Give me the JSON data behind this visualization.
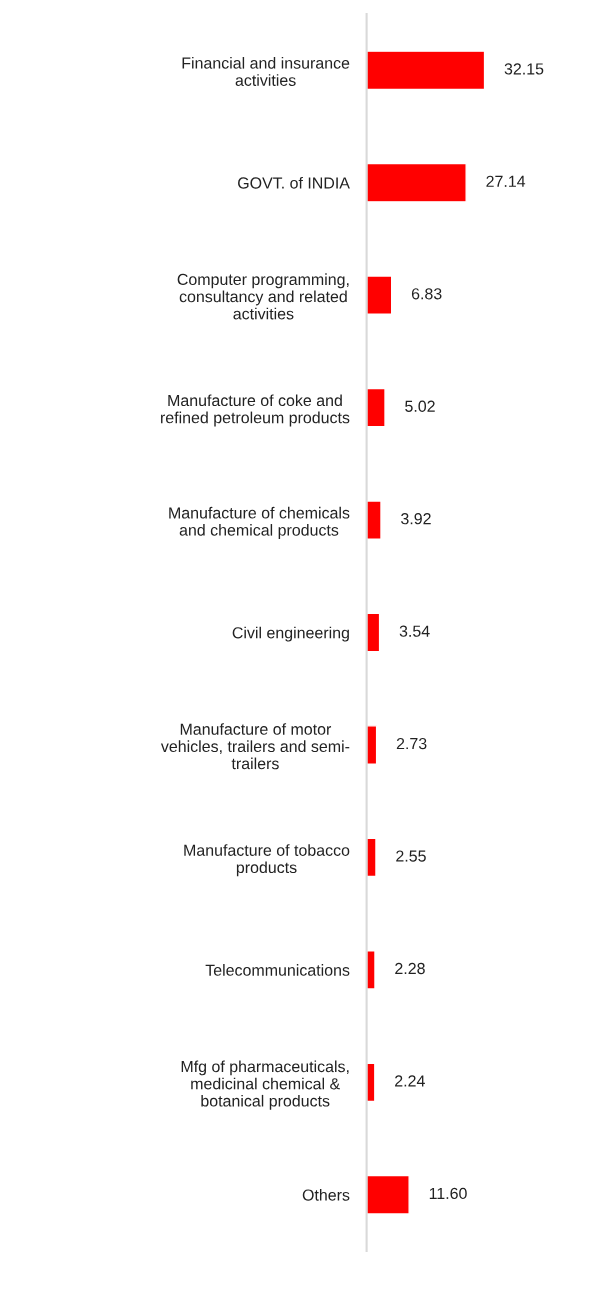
{
  "chart_data": {
    "type": "bar",
    "orientation": "horizontal",
    "categories": [
      "Financial and insurance\nactivities",
      "GOVT. of INDIA",
      "Computer programming,\nconsultancy and related\nactivities",
      "Manufacture of coke and\nrefined petroleum products",
      "Manufacture of chemicals\nand chemical products",
      "Civil engineering",
      "Manufacture of motor\nvehicles, trailers and semi-\ntrailers",
      "Manufacture of tobacco\nproducts",
      "Telecommunications",
      "Mfg of pharmaceuticals,\nmedicinal chemical &\nbotanical products",
      "Others"
    ],
    "values": [
      32.15,
      27.14,
      6.83,
      5.02,
      3.92,
      3.54,
      2.73,
      2.55,
      2.28,
      2.24,
      11.6
    ],
    "value_labels": [
      "32.15",
      "27.14",
      "6.83",
      "5.02",
      "3.92",
      "3.54",
      "2.73",
      "2.55",
      "2.28",
      "2.24",
      "11.60"
    ],
    "color": "#ff0000",
    "grid": false,
    "legend": false
  }
}
